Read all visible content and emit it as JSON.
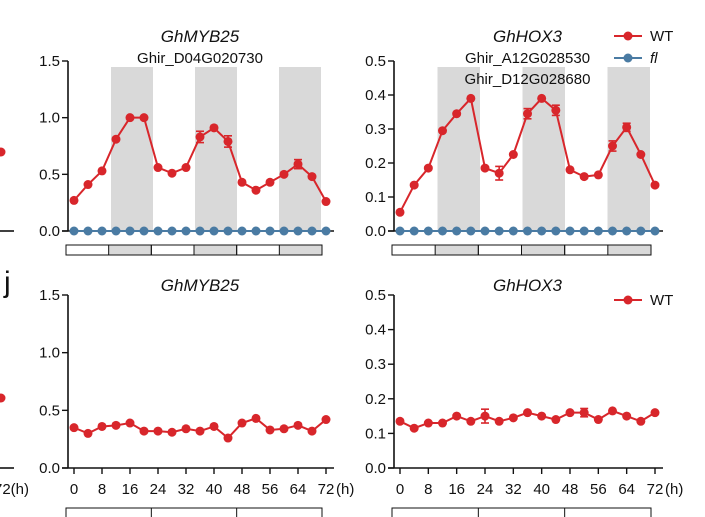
{
  "panel_label": "j",
  "edge_fragment_label": "72(h)",
  "colors": {
    "wt": "#d8262b",
    "fl": "#4a7ba3",
    "shade": "#d9d9d9",
    "axis": "#111111"
  },
  "chart_data": [
    {
      "type": "line",
      "title": "GhMYB25",
      "subtitle": "Ghir_D04G020730",
      "x": [
        0,
        4,
        8,
        12,
        16,
        20,
        24,
        28,
        32,
        36,
        40,
        44,
        48,
        52,
        56,
        60,
        64,
        68,
        72
      ],
      "ylim": [
        0,
        1.5
      ],
      "yticks": [
        "0.0",
        "0.5",
        "1.0",
        "1.5"
      ],
      "ytick_values": [
        0,
        0.5,
        1.0,
        1.5
      ],
      "xticks": [],
      "dark_periods": [
        [
          12,
          24
        ],
        [
          36,
          48
        ],
        [
          60,
          72
        ]
      ],
      "legend": [
        "WT",
        "fl"
      ],
      "series": [
        {
          "name": "WT",
          "values": [
            0.27,
            0.41,
            0.53,
            0.81,
            1.0,
            1.0,
            0.56,
            0.51,
            0.56,
            0.83,
            0.91,
            0.79,
            0.43,
            0.36,
            0.43,
            0.5,
            0.59,
            0.48,
            0.26
          ],
          "errors": [
            0,
            0,
            0,
            0,
            0,
            0,
            0,
            0,
            0,
            0.05,
            0,
            0.05,
            0,
            0,
            0,
            0,
            0.04,
            0,
            0
          ]
        },
        {
          "name": "fl",
          "values": [
            0,
            0,
            0,
            0,
            0,
            0,
            0,
            0,
            0,
            0,
            0,
            0,
            0,
            0,
            0,
            0,
            0,
            0,
            0
          ]
        }
      ]
    },
    {
      "type": "line",
      "title": "GhHOX3",
      "subtitle": "Ghir_A12G028530",
      "subtitle2": "Ghir_D12G028680",
      "x": [
        0,
        4,
        8,
        12,
        16,
        20,
        24,
        28,
        32,
        36,
        40,
        44,
        48,
        52,
        56,
        60,
        64,
        68,
        72
      ],
      "ylim": [
        0,
        0.5
      ],
      "yticks": [
        "0.0",
        "0.1",
        "0.2",
        "0.3",
        "0.4",
        "0.5"
      ],
      "ytick_values": [
        0,
        0.1,
        0.2,
        0.3,
        0.4,
        0.5
      ],
      "xticks": [],
      "dark_periods": [
        [
          12,
          24
        ],
        [
          36,
          48
        ],
        [
          60,
          72
        ]
      ],
      "legend": [],
      "series": [
        {
          "name": "WT",
          "values": [
            0.055,
            0.135,
            0.185,
            0.295,
            0.345,
            0.39,
            0.185,
            0.17,
            0.225,
            0.345,
            0.39,
            0.355,
            0.18,
            0.16,
            0.165,
            0.25,
            0.305,
            0.225,
            0.135
          ],
          "errors": [
            0,
            0,
            0,
            0,
            0,
            0,
            0,
            0.02,
            0,
            0.015,
            0,
            0.015,
            0,
            0,
            0,
            0.015,
            0.012,
            0,
            0
          ]
        },
        {
          "name": "fl",
          "values": [
            0,
            0,
            0,
            0,
            0,
            0,
            0,
            0,
            0,
            0,
            0,
            0,
            0,
            0,
            0,
            0,
            0,
            0,
            0
          ]
        }
      ]
    },
    {
      "type": "line",
      "title": "GhMYB25",
      "x": [
        0,
        4,
        8,
        12,
        16,
        20,
        24,
        28,
        32,
        36,
        40,
        44,
        48,
        52,
        56,
        60,
        64,
        68,
        72
      ],
      "ylim": [
        0,
        1.5
      ],
      "yticks": [
        "0.0",
        "0.5",
        "1.0",
        "1.5"
      ],
      "ytick_values": [
        0,
        0.5,
        1.0,
        1.5
      ],
      "xticks": [
        "0",
        "8",
        "16",
        "24",
        "32",
        "40",
        "48",
        "56",
        "64",
        "72"
      ],
      "xtick_values": [
        0,
        8,
        16,
        24,
        32,
        40,
        48,
        56,
        64,
        72
      ],
      "xunit": "(h)",
      "dark_periods": [],
      "legend": [
        "WT"
      ],
      "series": [
        {
          "name": "WT",
          "values": [
            0.35,
            0.3,
            0.36,
            0.37,
            0.39,
            0.32,
            0.32,
            0.31,
            0.34,
            0.32,
            0.36,
            0.26,
            0.39,
            0.43,
            0.33,
            0.34,
            0.37,
            0.32,
            0.42
          ],
          "errors": [
            0,
            0,
            0,
            0,
            0,
            0,
            0,
            0,
            0,
            0,
            0,
            0,
            0,
            0,
            0,
            0,
            0,
            0,
            0
          ]
        }
      ]
    },
    {
      "type": "line",
      "title": "GhHOX3",
      "x": [
        0,
        4,
        8,
        12,
        16,
        20,
        24,
        28,
        32,
        36,
        40,
        44,
        48,
        52,
        56,
        60,
        64,
        68,
        72
      ],
      "ylim": [
        0,
        0.5
      ],
      "yticks": [
        "0.0",
        "0.1",
        "0.2",
        "0.3",
        "0.4",
        "0.5"
      ],
      "ytick_values": [
        0,
        0.1,
        0.2,
        0.3,
        0.4,
        0.5
      ],
      "xticks": [
        "0",
        "8",
        "16",
        "24",
        "32",
        "40",
        "48",
        "56",
        "64",
        "72"
      ],
      "xtick_values": [
        0,
        8,
        16,
        24,
        32,
        40,
        48,
        56,
        64,
        72
      ],
      "xunit": "(h)",
      "dark_periods": [],
      "legend": [],
      "series": [
        {
          "name": "WT",
          "values": [
            0.135,
            0.115,
            0.13,
            0.13,
            0.15,
            0.135,
            0.15,
            0.135,
            0.145,
            0.16,
            0.15,
            0.14,
            0.16,
            0.16,
            0.14,
            0.165,
            0.15,
            0.135,
            0.16
          ],
          "errors": [
            0,
            0,
            0,
            0,
            0,
            0,
            0.02,
            0,
            0,
            0,
            0,
            0,
            0,
            0.012,
            0,
            0,
            0,
            0,
            0
          ]
        }
      ]
    }
  ]
}
